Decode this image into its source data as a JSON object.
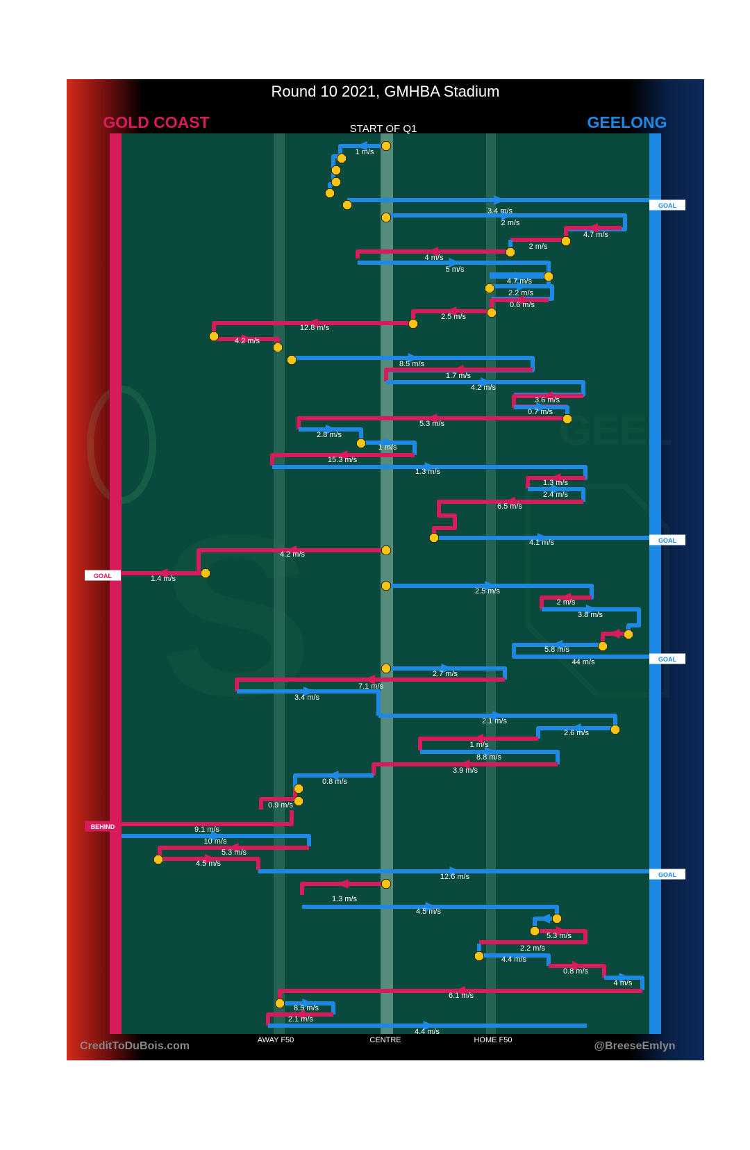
{
  "header": {
    "title": "Round 10 2021, GMHBA Stadium",
    "start_label": "START OF Q1"
  },
  "teams": {
    "away": {
      "name": "GOLD COAST",
      "color": "#d81b5a"
    },
    "home": {
      "name": "GEELONG",
      "color": "#1e88e5"
    }
  },
  "axis": {
    "labels": [
      "AWAY F50",
      "CENTRE",
      "HOME F50"
    ]
  },
  "footer": {
    "credit_left": "CreditToDuBois.com",
    "credit_right": "@BreeseEmlyn"
  },
  "colors": {
    "field": "#0a4a3c",
    "away": "#d81b5a",
    "home": "#1e88e5",
    "marker": "#f5c518",
    "background": "#000000"
  },
  "chart_data": {
    "type": "line",
    "title": "Round 10 2021, GMHBA Stadium",
    "xlabel": "",
    "ylabel": "",
    "x_ticks": [
      "AWAY F50",
      "CENTRE",
      "HOME F50"
    ],
    "series": [
      {
        "name": "GOLD COAST"
      },
      {
        "name": "GEELONG"
      }
    ],
    "chains": [
      {
        "team": "home",
        "speed": "1 m/s"
      },
      {
        "team": "home",
        "speed": "3.4 m/s",
        "outcome": "GOAL"
      },
      {
        "team": "home",
        "speed": "2 m/s"
      },
      {
        "team": "away",
        "speed": "4.7 m/s"
      },
      {
        "team": "home",
        "speed": "2 m/s"
      },
      {
        "team": "away",
        "speed": "4 m/s"
      },
      {
        "team": "home",
        "speed": "5 m/s"
      },
      {
        "team": "home",
        "speed": "4.7 m/s"
      },
      {
        "team": "home",
        "speed": "2.2 m/s"
      },
      {
        "team": "away",
        "speed": "0.6 m/s"
      },
      {
        "team": "away",
        "speed": "2.5 m/s"
      },
      {
        "team": "away",
        "speed": "12.8 m/s"
      },
      {
        "team": "away",
        "speed": "4.2 m/s"
      },
      {
        "team": "home",
        "speed": "8.5 m/s"
      },
      {
        "team": "away",
        "speed": "1.7 m/s"
      },
      {
        "team": "home",
        "speed": "4.2 m/s"
      },
      {
        "team": "away",
        "speed": "3.6 m/s"
      },
      {
        "team": "home",
        "speed": "0.7 m/s"
      },
      {
        "team": "away",
        "speed": "5.3 m/s"
      },
      {
        "team": "home",
        "speed": "2.8 m/s"
      },
      {
        "team": "home",
        "speed": "1 m/s"
      },
      {
        "team": "away",
        "speed": "15.3 m/s"
      },
      {
        "team": "home",
        "speed": "1.3 m/s"
      },
      {
        "team": "away",
        "speed": "1.3 m/s"
      },
      {
        "team": "home",
        "speed": "2.4 m/s"
      },
      {
        "team": "away",
        "speed": "6.5 m/s"
      },
      {
        "team": "home",
        "speed": "4.1 m/s",
        "outcome": "GOAL"
      },
      {
        "team": "away",
        "speed": "4.2 m/s"
      },
      {
        "team": "away",
        "speed": "1.4 m/s",
        "outcome": "GOAL"
      },
      {
        "team": "home",
        "speed": "2.5 m/s"
      },
      {
        "team": "away",
        "speed": "2 m/s"
      },
      {
        "team": "home",
        "speed": "3.8 m/s"
      },
      {
        "team": "away",
        "speed": "5.8 m/s"
      },
      {
        "team": "home",
        "speed": "44 m/s",
        "outcome": "GOAL"
      },
      {
        "team": "home",
        "speed": "2.7 m/s"
      },
      {
        "team": "away",
        "speed": "7.1 m/s"
      },
      {
        "team": "home",
        "speed": "3.4 m/s"
      },
      {
        "team": "home",
        "speed": "2.1 m/s"
      },
      {
        "team": "home",
        "speed": "2.6 m/s"
      },
      {
        "team": "away",
        "speed": "1 m/s"
      },
      {
        "team": "home",
        "speed": "8.8 m/s"
      },
      {
        "team": "away",
        "speed": "3.9 m/s"
      },
      {
        "team": "home",
        "speed": "0.8 m/s"
      },
      {
        "team": "away",
        "speed": "0.9 m/s"
      },
      {
        "team": "away",
        "speed": "9.1 m/s",
        "outcome": "BEHIND"
      },
      {
        "team": "home",
        "speed": "10 m/s"
      },
      {
        "team": "away",
        "speed": "5.3 m/s"
      },
      {
        "team": "away",
        "speed": "4.5 m/s"
      },
      {
        "team": "home",
        "speed": "12.6 m/s",
        "outcome": "GOAL"
      },
      {
        "team": "away",
        "speed": "1.3 m/s"
      },
      {
        "team": "home",
        "speed": "4.5 m/s"
      },
      {
        "team": "home",
        "speed": "5.3 m/s"
      },
      {
        "team": "away",
        "speed": "2.2 m/s"
      },
      {
        "team": "home",
        "speed": "4.4 m/s"
      },
      {
        "team": "away",
        "speed": "0.8 m/s"
      },
      {
        "team": "home",
        "speed": "4 m/s"
      },
      {
        "team": "away",
        "speed": "6.1 m/s"
      },
      {
        "team": "home",
        "speed": "8.5 m/s"
      },
      {
        "team": "away",
        "speed": "2.1 m/s"
      },
      {
        "team": "home",
        "speed": "4.4 m/s"
      }
    ]
  }
}
